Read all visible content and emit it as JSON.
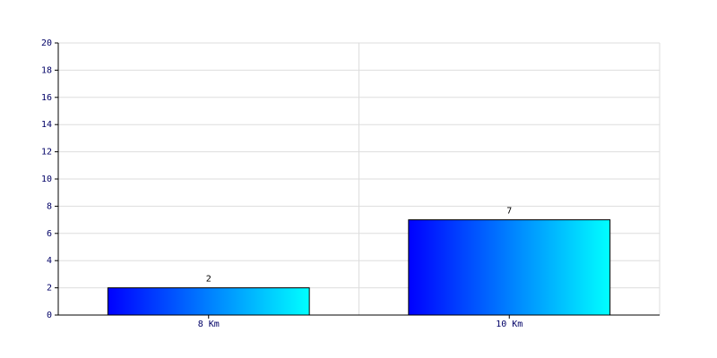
{
  "chart_data": {
    "type": "bar",
    "categories": [
      "8 Km",
      "10 Km"
    ],
    "values": [
      2,
      7
    ],
    "color": [
      "#0000ff",
      "#00ffff"
    ],
    "ylim": [
      0,
      20
    ],
    "yticks": [
      0,
      2,
      4,
      6,
      8,
      10,
      12,
      14,
      16,
      18,
      20
    ],
    "grid": true
  }
}
